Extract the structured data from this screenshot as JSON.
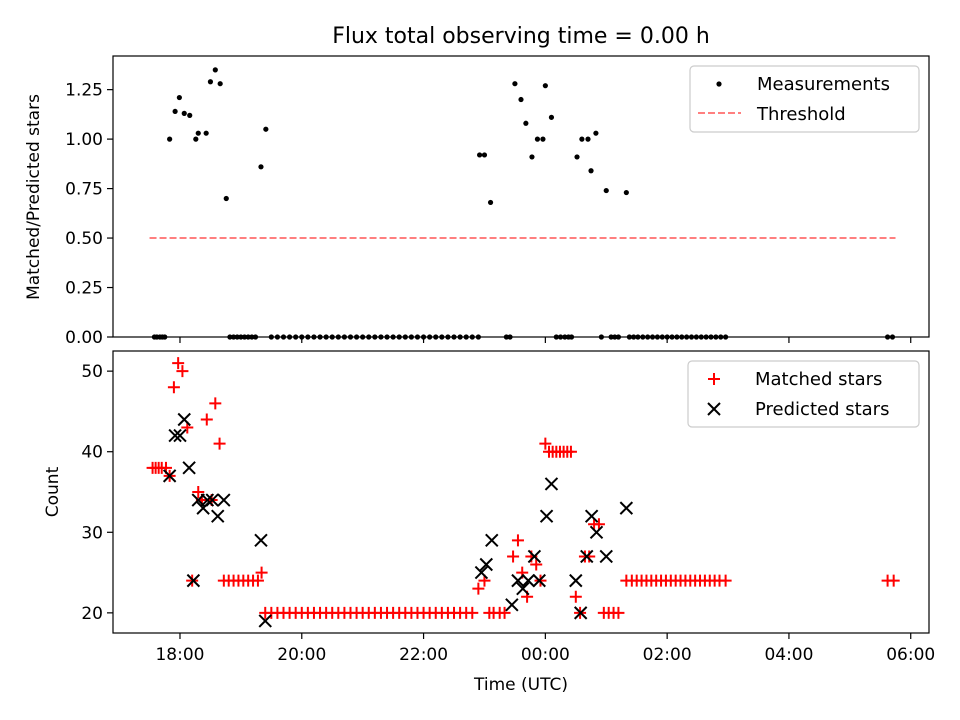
{
  "title": "Flux total observing time = 0.00 h",
  "colors": {
    "measurement": "#000000",
    "threshold": "#ff7f7f",
    "matched": "#ff0000",
    "predicted": "#000000"
  },
  "chart_data": [
    {
      "type": "scatter",
      "panel": "top",
      "ylabel": "Matched/Predicted stars",
      "ylim": [
        0,
        1.42
      ],
      "yticks": [
        0,
        0.25,
        0.5,
        0.75,
        1.0,
        1.25
      ],
      "ytick_labels": [
        "0.00",
        "0.25",
        "0.50",
        "0.75",
        "1.00",
        "1.25"
      ],
      "legend": [
        "Measurements",
        "Threshold"
      ],
      "legend_position": "top-right",
      "threshold": {
        "name": "Threshold",
        "value": 0.5,
        "x_start": 17.5,
        "x_end": 29.75
      },
      "series": [
        {
          "name": "Measurements",
          "points": [
            [
              17.58,
              0
            ],
            [
              17.62,
              0
            ],
            [
              17.67,
              0
            ],
            [
              17.71,
              0
            ],
            [
              17.75,
              0
            ],
            [
              17.83,
              1.0
            ],
            [
              17.92,
              1.14
            ],
            [
              17.99,
              1.21
            ],
            [
              18.07,
              1.13
            ],
            [
              18.16,
              1.12
            ],
            [
              18.26,
              1.0
            ],
            [
              18.3,
              1.03
            ],
            [
              18.43,
              1.03
            ],
            [
              18.5,
              1.29
            ],
            [
              18.58,
              1.35
            ],
            [
              18.66,
              1.28
            ],
            [
              18.76,
              0.7
            ],
            [
              18.82,
              0
            ],
            [
              18.88,
              0
            ],
            [
              18.94,
              0
            ],
            [
              19.0,
              0
            ],
            [
              19.06,
              0
            ],
            [
              19.12,
              0
            ],
            [
              19.18,
              0
            ],
            [
              19.24,
              0
            ],
            [
              19.33,
              0.86
            ],
            [
              19.41,
              1.05
            ],
            [
              19.5,
              0
            ],
            [
              19.6,
              0
            ],
            [
              19.7,
              0
            ],
            [
              19.8,
              0
            ],
            [
              19.9,
              0
            ],
            [
              20.0,
              0
            ],
            [
              20.1,
              0
            ],
            [
              20.2,
              0
            ],
            [
              20.3,
              0
            ],
            [
              20.4,
              0
            ],
            [
              20.5,
              0
            ],
            [
              20.6,
              0
            ],
            [
              20.7,
              0
            ],
            [
              20.8,
              0
            ],
            [
              20.9,
              0
            ],
            [
              21.0,
              0
            ],
            [
              21.1,
              0
            ],
            [
              21.2,
              0
            ],
            [
              21.3,
              0
            ],
            [
              21.4,
              0
            ],
            [
              21.5,
              0
            ],
            [
              21.6,
              0
            ],
            [
              21.7,
              0
            ],
            [
              21.8,
              0
            ],
            [
              21.9,
              0
            ],
            [
              22.0,
              0
            ],
            [
              22.1,
              0
            ],
            [
              22.2,
              0
            ],
            [
              22.3,
              0
            ],
            [
              22.4,
              0
            ],
            [
              22.5,
              0
            ],
            [
              22.6,
              0
            ],
            [
              22.7,
              0
            ],
            [
              22.8,
              0
            ],
            [
              22.9,
              0
            ],
            [
              22.92,
              0.92
            ],
            [
              23.0,
              0.92
            ],
            [
              23.1,
              0.68
            ],
            [
              23.36,
              0
            ],
            [
              23.42,
              0
            ],
            [
              23.5,
              1.28
            ],
            [
              23.6,
              1.2
            ],
            [
              23.68,
              1.08
            ],
            [
              23.78,
              0.91
            ],
            [
              23.87,
              1.0
            ],
            [
              23.96,
              1.0
            ],
            [
              24.0,
              1.27
            ],
            [
              24.1,
              1.11
            ],
            [
              24.18,
              0
            ],
            [
              24.25,
              0
            ],
            [
              24.32,
              0
            ],
            [
              24.38,
              0
            ],
            [
              24.43,
              0
            ],
            [
              24.52,
              0.91
            ],
            [
              24.6,
              1.0
            ],
            [
              24.7,
              1.0
            ],
            [
              24.75,
              0.84
            ],
            [
              24.83,
              1.03
            ],
            [
              24.92,
              0
            ],
            [
              25.0,
              0.74
            ],
            [
              25.08,
              0
            ],
            [
              25.14,
              0
            ],
            [
              25.2,
              0
            ],
            [
              25.33,
              0.73
            ],
            [
              25.38,
              0
            ],
            [
              25.45,
              0
            ],
            [
              25.52,
              0
            ],
            [
              25.6,
              0
            ],
            [
              25.68,
              0
            ],
            [
              25.76,
              0
            ],
            [
              25.84,
              0
            ],
            [
              25.92,
              0
            ],
            [
              26.0,
              0
            ],
            [
              26.08,
              0
            ],
            [
              26.16,
              0
            ],
            [
              26.24,
              0
            ],
            [
              26.32,
              0
            ],
            [
              26.4,
              0
            ],
            [
              26.48,
              0
            ],
            [
              26.56,
              0
            ],
            [
              26.64,
              0
            ],
            [
              26.72,
              0
            ],
            [
              26.8,
              0
            ],
            [
              26.88,
              0
            ],
            [
              26.96,
              0
            ],
            [
              29.62,
              0
            ],
            [
              29.7,
              0
            ]
          ]
        }
      ]
    },
    {
      "type": "scatter",
      "panel": "bottom",
      "xlabel": "Time (UTC)",
      "ylabel": "Count",
      "xlim": [
        16.9,
        30.3
      ],
      "xticks": [
        18,
        20,
        22,
        24,
        26,
        28,
        30
      ],
      "xtick_labels": [
        "18:00",
        "20:00",
        "22:00",
        "00:00",
        "02:00",
        "04:00",
        "06:00"
      ],
      "ylim": [
        17.5,
        52.5
      ],
      "yticks": [
        20,
        30,
        40,
        50
      ],
      "ytick_labels": [
        "20",
        "30",
        "40",
        "50"
      ],
      "legend": [
        "Matched stars",
        "Predicted stars"
      ],
      "legend_position": "top-right",
      "series": [
        {
          "name": "Matched stars",
          "marker": "plus",
          "points": [
            [
              17.55,
              38
            ],
            [
              17.6,
              38
            ],
            [
              17.65,
              38
            ],
            [
              17.7,
              38
            ],
            [
              17.77,
              38
            ],
            [
              17.83,
              37
            ],
            [
              17.9,
              48
            ],
            [
              17.97,
              51
            ],
            [
              18.04,
              50
            ],
            [
              18.12,
              43
            ],
            [
              18.2,
              24
            ],
            [
              18.3,
              35
            ],
            [
              18.36,
              34
            ],
            [
              18.44,
              44
            ],
            [
              18.52,
              34
            ],
            [
              18.58,
              46
            ],
            [
              18.65,
              41
            ],
            [
              18.72,
              24
            ],
            [
              18.8,
              24
            ],
            [
              18.88,
              24
            ],
            [
              18.96,
              24
            ],
            [
              19.04,
              24
            ],
            [
              19.12,
              24
            ],
            [
              19.2,
              24
            ],
            [
              19.28,
              24
            ],
            [
              19.34,
              25
            ],
            [
              19.4,
              20
            ],
            [
              19.5,
              20
            ],
            [
              19.6,
              20
            ],
            [
              19.7,
              20
            ],
            [
              19.8,
              20
            ],
            [
              19.9,
              20
            ],
            [
              20.0,
              20
            ],
            [
              20.1,
              20
            ],
            [
              20.2,
              20
            ],
            [
              20.3,
              20
            ],
            [
              20.4,
              20
            ],
            [
              20.5,
              20
            ],
            [
              20.6,
              20
            ],
            [
              20.7,
              20
            ],
            [
              20.8,
              20
            ],
            [
              20.9,
              20
            ],
            [
              21.0,
              20
            ],
            [
              21.1,
              20
            ],
            [
              21.2,
              20
            ],
            [
              21.3,
              20
            ],
            [
              21.4,
              20
            ],
            [
              21.5,
              20
            ],
            [
              21.6,
              20
            ],
            [
              21.7,
              20
            ],
            [
              21.8,
              20
            ],
            [
              21.9,
              20
            ],
            [
              22.0,
              20
            ],
            [
              22.1,
              20
            ],
            [
              22.2,
              20
            ],
            [
              22.3,
              20
            ],
            [
              22.4,
              20
            ],
            [
              22.5,
              20
            ],
            [
              22.6,
              20
            ],
            [
              22.7,
              20
            ],
            [
              22.8,
              20
            ],
            [
              22.9,
              23
            ],
            [
              23.0,
              24
            ],
            [
              23.08,
              20
            ],
            [
              23.15,
              20
            ],
            [
              23.25,
              20
            ],
            [
              23.33,
              20
            ],
            [
              23.47,
              27
            ],
            [
              23.55,
              29
            ],
            [
              23.62,
              25
            ],
            [
              23.7,
              22
            ],
            [
              23.77,
              27
            ],
            [
              23.85,
              26
            ],
            [
              23.92,
              24
            ],
            [
              24.0,
              41
            ],
            [
              24.06,
              40
            ],
            [
              24.12,
              40
            ],
            [
              24.18,
              40
            ],
            [
              24.24,
              40
            ],
            [
              24.3,
              40
            ],
            [
              24.36,
              40
            ],
            [
              24.42,
              40
            ],
            [
              24.5,
              22
            ],
            [
              24.57,
              20
            ],
            [
              24.65,
              27
            ],
            [
              24.72,
              27
            ],
            [
              24.8,
              31
            ],
            [
              24.88,
              31
            ],
            [
              24.96,
              20
            ],
            [
              25.04,
              20
            ],
            [
              25.12,
              20
            ],
            [
              25.2,
              20
            ],
            [
              25.33,
              24
            ],
            [
              25.42,
              24
            ],
            [
              25.5,
              24
            ],
            [
              25.58,
              24
            ],
            [
              25.66,
              24
            ],
            [
              25.74,
              24
            ],
            [
              25.82,
              24
            ],
            [
              25.9,
              24
            ],
            [
              25.98,
              24
            ],
            [
              26.06,
              24
            ],
            [
              26.14,
              24
            ],
            [
              26.22,
              24
            ],
            [
              26.3,
              24
            ],
            [
              26.38,
              24
            ],
            [
              26.46,
              24
            ],
            [
              26.54,
              24
            ],
            [
              26.62,
              24
            ],
            [
              26.7,
              24
            ],
            [
              26.78,
              24
            ],
            [
              26.86,
              24
            ],
            [
              26.96,
              24
            ],
            [
              29.62,
              24
            ],
            [
              29.72,
              24
            ]
          ]
        },
        {
          "name": "Predicted stars",
          "marker": "x",
          "points": [
            [
              17.83,
              37
            ],
            [
              17.92,
              42
            ],
            [
              18.0,
              42
            ],
            [
              18.07,
              44
            ],
            [
              18.15,
              38
            ],
            [
              18.22,
              24
            ],
            [
              18.3,
              34
            ],
            [
              18.38,
              33
            ],
            [
              18.45,
              34
            ],
            [
              18.53,
              34
            ],
            [
              18.62,
              32
            ],
            [
              18.72,
              34
            ],
            [
              19.33,
              29
            ],
            [
              19.4,
              19
            ],
            [
              22.95,
              25
            ],
            [
              23.03,
              26
            ],
            [
              23.12,
              29
            ],
            [
              23.45,
              21
            ],
            [
              23.55,
              24
            ],
            [
              23.63,
              23
            ],
            [
              23.72,
              24
            ],
            [
              23.82,
              27
            ],
            [
              23.9,
              24
            ],
            [
              24.02,
              32
            ],
            [
              24.1,
              36
            ],
            [
              24.5,
              24
            ],
            [
              24.58,
              20
            ],
            [
              24.68,
              27
            ],
            [
              24.76,
              32
            ],
            [
              24.84,
              30
            ],
            [
              25.0,
              27
            ],
            [
              25.33,
              33
            ]
          ]
        }
      ]
    }
  ]
}
